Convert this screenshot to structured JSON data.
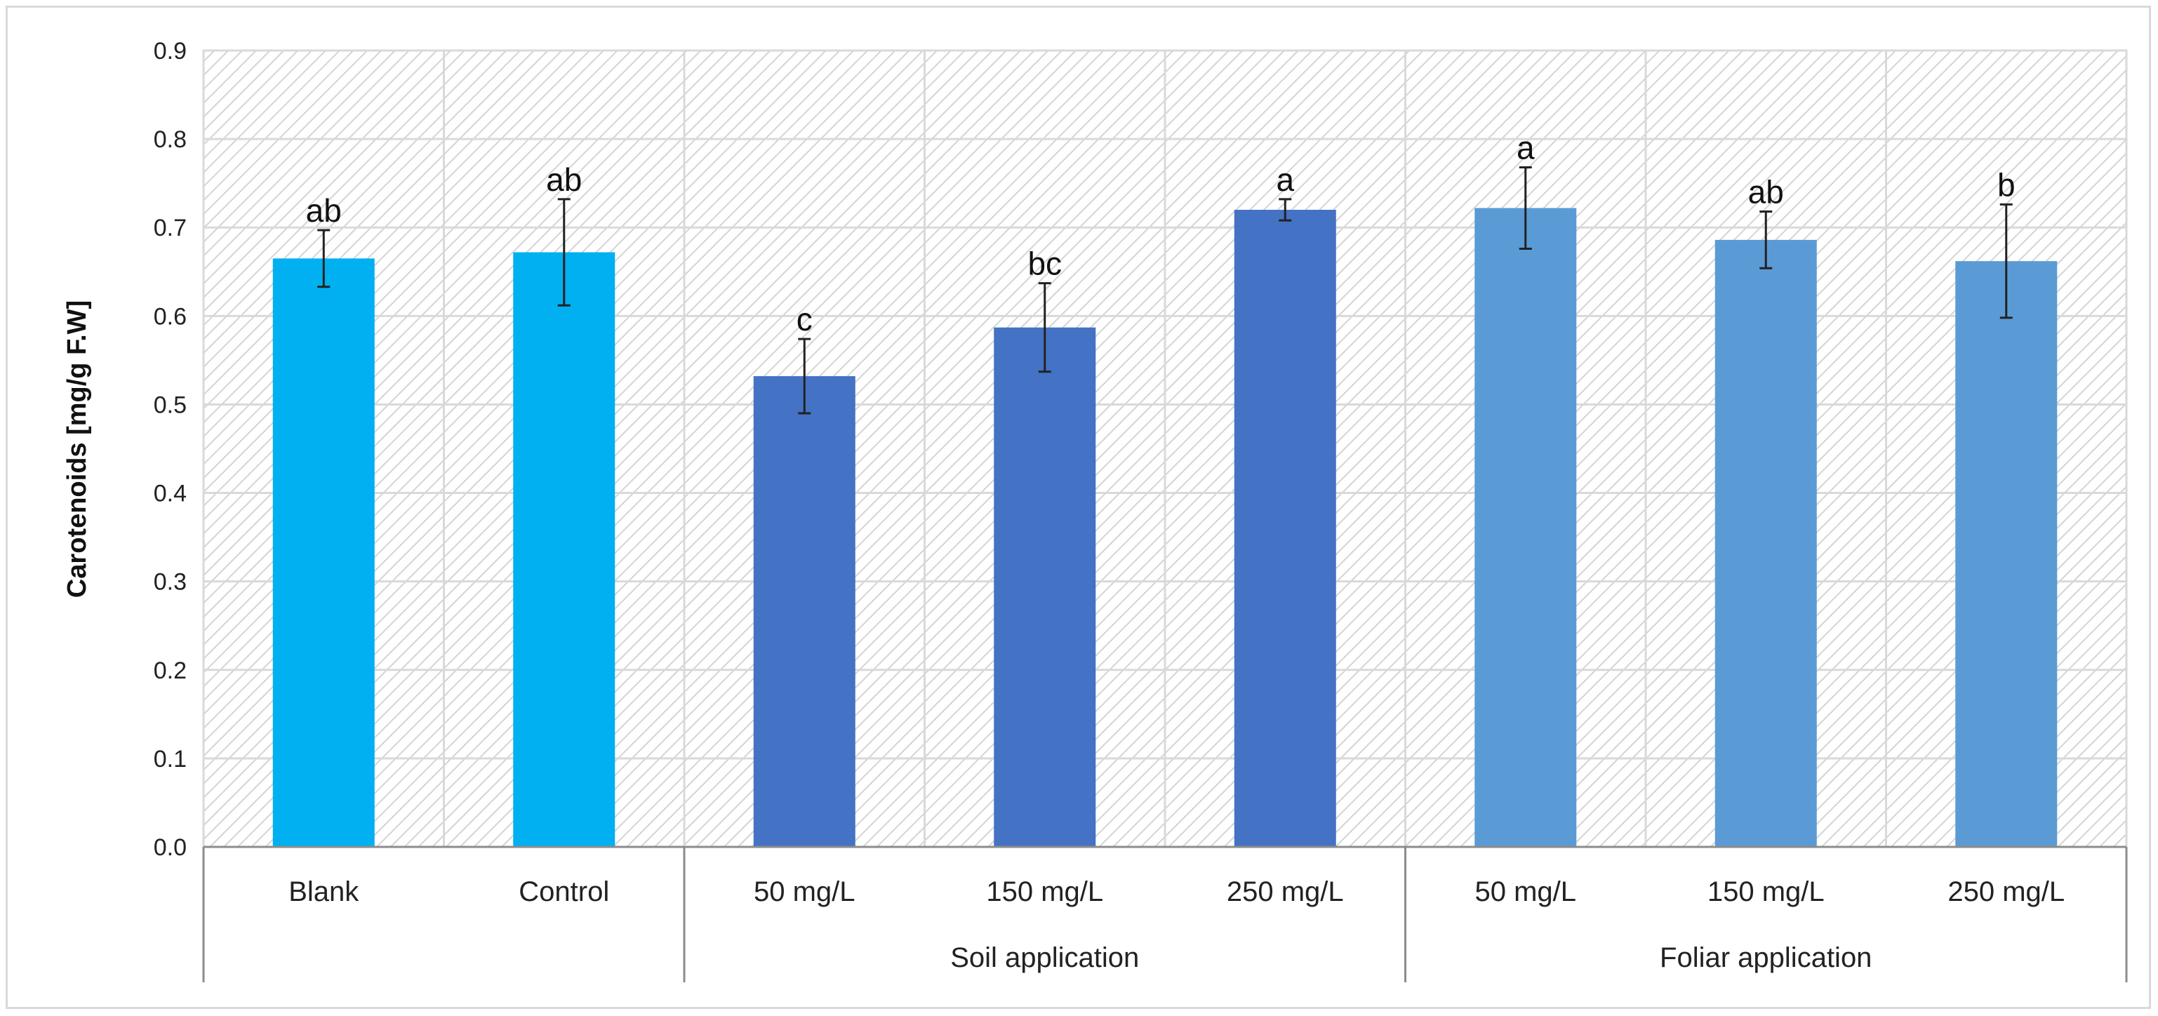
{
  "chart_data": {
    "type": "bar",
    "title": "",
    "xlabel": "",
    "ylabel": "Carotenoids  [mg/g F.W]",
    "ylim": [
      0,
      0.9
    ],
    "yticks": [
      "0.0",
      "0.1",
      "0.2",
      "0.3",
      "0.4",
      "0.5",
      "0.6",
      "0.7",
      "0.8",
      "0.9"
    ],
    "grid": true,
    "categories": [
      "Blank",
      "Control",
      "50 mg/L",
      "150 mg/L",
      "250 mg/L",
      "50 mg/L",
      "150 mg/L",
      "250 mg/L"
    ],
    "values": [
      0.665,
      0.672,
      0.532,
      0.587,
      0.72,
      0.722,
      0.686,
      0.662
    ],
    "errors": [
      0.032,
      0.06,
      0.042,
      0.05,
      0.012,
      0.046,
      0.032,
      0.064
    ],
    "significance": [
      "ab",
      "ab",
      "c",
      "bc",
      "a",
      "a",
      "ab",
      "b"
    ],
    "groups": [
      {
        "label": "",
        "start": 0,
        "end": 1
      },
      {
        "label": "Soil application",
        "start": 2,
        "end": 4
      },
      {
        "label": "Foliar application",
        "start": 5,
        "end": 7
      }
    ],
    "bar_colors": [
      "#00b0f0",
      "#00b0f0",
      "#4472c4",
      "#4472c4",
      "#4472c4",
      "#5b9bd5",
      "#5b9bd5",
      "#5b9bd5"
    ]
  }
}
